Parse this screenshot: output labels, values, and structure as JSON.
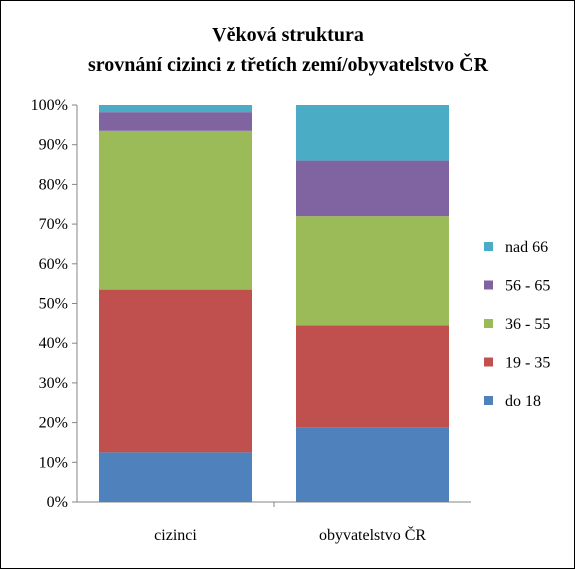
{
  "chart_data": {
    "type": "bar",
    "stacked": true,
    "percent": true,
    "title_lines": [
      "Věková struktura",
      "srovnání cizinci z třetích zemí/obyvatelstvo ČR"
    ],
    "categories": [
      "cizinci",
      "obyvatelstvo ČR"
    ],
    "series": [
      {
        "name": "do 18",
        "color": "#4F81BD",
        "values": [
          12.5,
          18.7
        ]
      },
      {
        "name": "19 - 35",
        "color": "#C0504D",
        "values": [
          41.0,
          25.8
        ]
      },
      {
        "name": "36 - 55",
        "color": "#9BBB59",
        "values": [
          40.0,
          27.5
        ]
      },
      {
        "name": "56 - 65",
        "color": "#8064A2",
        "values": [
          4.7,
          14.0
        ]
      },
      {
        "name": "nad 66",
        "color": "#4BACC6",
        "values": [
          1.8,
          14.0
        ]
      }
    ],
    "legend_order": [
      "nad 66",
      "56 - 65",
      "36 - 55",
      "19 - 35",
      "do 18"
    ],
    "yticks": [
      "0%",
      "10%",
      "20%",
      "30%",
      "40%",
      "50%",
      "60%",
      "70%",
      "80%",
      "90%",
      "100%"
    ],
    "ylim": [
      0,
      100
    ],
    "grid": false,
    "legend_position": "right"
  }
}
